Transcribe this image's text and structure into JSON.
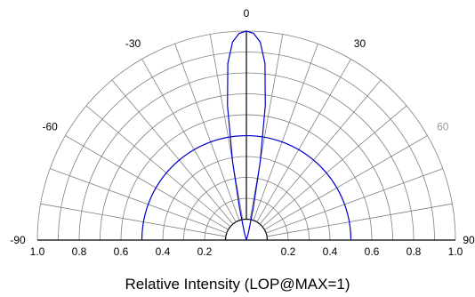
{
  "chart_data": {
    "type": "polar",
    "title": "",
    "xlabel": "Relative Intensity (LOP@MAX=1)",
    "radial_range": [
      0,
      1.0
    ],
    "radial_ticks": [
      0.2,
      0.4,
      0.6,
      0.8,
      1.0
    ],
    "radial_tick_labels": [
      "1.0",
      "0.8",
      "0.6",
      "0.4",
      "0.2",
      "",
      "0.2",
      "0.4",
      "0.6",
      "0.8",
      "1.0"
    ],
    "angle_range": [
      -90,
      90
    ],
    "angle_labels": [
      {
        "angle": -90,
        "label": "-90"
      },
      {
        "angle": -60,
        "label": "-60"
      },
      {
        "angle": -30,
        "label": "-30"
      },
      {
        "angle": 0,
        "label": "0"
      },
      {
        "angle": 30,
        "label": "30"
      },
      {
        "angle": 60,
        "label": "60"
      },
      {
        "angle": 90,
        "label": "90"
      }
    ],
    "spoke_step_deg": 10,
    "grid": true,
    "colors": {
      "grid": "#808080",
      "series": "#0000cc",
      "axis": "#000000",
      "label_60": "#999999"
    },
    "series": [
      {
        "curve": "narrow-lobe",
        "angles": [
          -90,
          -30,
          -20,
          -15,
          -12,
          -10,
          -8,
          -6,
          -4,
          -2,
          0,
          2,
          4,
          6,
          8,
          10,
          12,
          15,
          20,
          30,
          90
        ],
        "values": [
          0.0,
          0.0,
          0.0,
          0.04,
          0.16,
          0.38,
          0.65,
          0.85,
          0.95,
          0.99,
          1.0,
          0.99,
          0.95,
          0.85,
          0.65,
          0.38,
          0.16,
          0.04,
          0.0,
          0.0,
          0.0
        ]
      },
      {
        "curve": "wide-arc",
        "angles": [
          -90,
          -60,
          -30,
          0,
          30,
          60,
          90
        ],
        "values": [
          0.5,
          0.5,
          0.5,
          0.5,
          0.5,
          0.5,
          0.5
        ]
      }
    ]
  }
}
